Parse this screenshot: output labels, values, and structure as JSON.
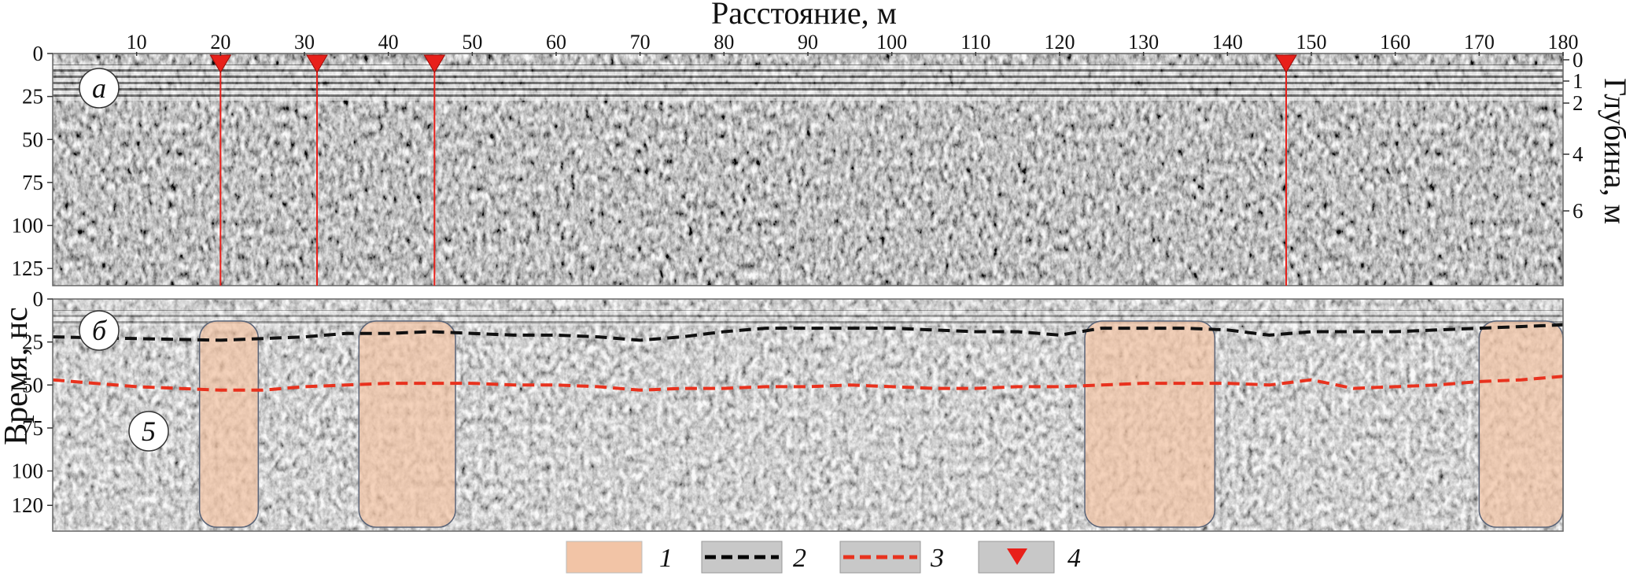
{
  "figure": {
    "x_axis_title": "Расстояние, м",
    "y_axis_title": "Время, нс",
    "depth_axis_title": "Глубина, м",
    "x_ticks": [
      "10",
      "20",
      "30",
      "40",
      "50",
      "60",
      "70",
      "80",
      "90",
      "100",
      "110",
      "120",
      "130",
      "140",
      "150",
      "160",
      "170",
      "180"
    ],
    "panel_a_time_ticks": [
      "0",
      "25",
      "50",
      "75",
      "100",
      "125"
    ],
    "panel_b_time_ticks": [
      "0",
      "25",
      "50",
      "75",
      "100",
      "120"
    ],
    "depth_ticks": [
      "0",
      "1",
      "2",
      "4",
      "6"
    ],
    "panel_a_label": "а",
    "panel_b_label": "б",
    "marker_5_label": "5",
    "legend": [
      {
        "label": "1",
        "desc": "shaded zone",
        "color": "#f2c4a6"
      },
      {
        "label": "2",
        "desc": "black dashed line",
        "color": "#000000"
      },
      {
        "label": "3",
        "desc": "red dashed line",
        "color": "#e8321e"
      },
      {
        "label": "4",
        "desc": "red triangle",
        "color": "#e8201a"
      }
    ]
  },
  "chart_data": [
    {
      "type": "scatter",
      "title": "",
      "panel": "а",
      "xlabel": "Расстояние, м",
      "ylabel": "Время, нс",
      "xlim": [
        0,
        180
      ],
      "ylim": [
        0,
        135
      ],
      "markers_x": [
        20,
        31.5,
        45.5,
        147
      ]
    },
    {
      "type": "line",
      "title": "",
      "panel": "б",
      "xlabel": "Расстояние, м",
      "ylabel": "Время, нс",
      "xlim": [
        0,
        180
      ],
      "ylim": [
        0,
        135
      ],
      "zones": [
        [
          17.5,
          24.5
        ],
        [
          36.5,
          48
        ],
        [
          123,
          138.5
        ],
        [
          170,
          180
        ]
      ],
      "series": [
        {
          "x": [
            0,
            10,
            20,
            30,
            35,
            40,
            45,
            50,
            55,
            60,
            65,
            70,
            75,
            80,
            85,
            90,
            95,
            100,
            105,
            110,
            115,
            120,
            125,
            130,
            135,
            140,
            145,
            150,
            155,
            160,
            165,
            170,
            175,
            180
          ],
          "values": [
            22,
            23,
            24,
            22,
            20,
            20,
            19,
            20,
            21,
            21,
            22,
            24,
            22,
            19,
            17,
            17,
            17,
            17,
            18,
            19,
            19,
            21,
            17,
            17,
            17,
            18,
            21,
            19,
            19,
            19,
            18,
            17,
            16,
            15
          ]
        },
        {
          "x": [
            0,
            5,
            10,
            15,
            20,
            25,
            30,
            35,
            40,
            45,
            50,
            55,
            60,
            65,
            70,
            75,
            80,
            85,
            90,
            95,
            100,
            105,
            110,
            115,
            120,
            125,
            130,
            135,
            140,
            145,
            150,
            155,
            160,
            165,
            170,
            175,
            180
          ],
          "values": [
            47,
            49,
            51,
            52,
            53,
            53,
            51,
            50,
            49,
            49,
            49,
            50,
            50,
            51,
            53,
            52,
            52,
            51,
            51,
            50,
            51,
            52,
            52,
            51,
            51,
            50,
            49,
            49,
            49,
            50,
            47,
            52,
            51,
            50,
            48,
            47,
            45
          ]
        }
      ]
    }
  ]
}
